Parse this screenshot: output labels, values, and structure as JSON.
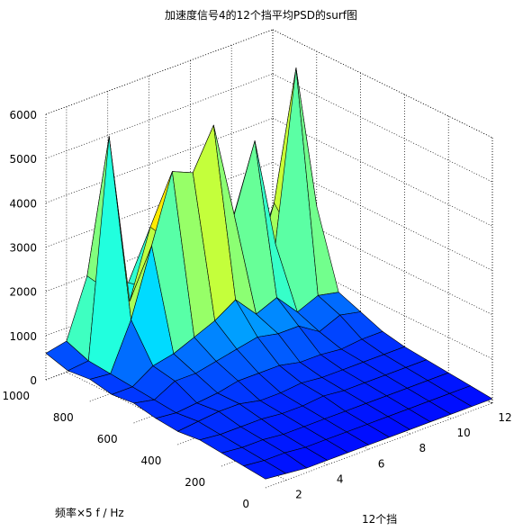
{
  "window": {
    "background": "#ffffff"
  },
  "chart_data": {
    "type": "surface",
    "title": "加速度信号4的12个挡平均PSD的surf图",
    "xlabel": "12个挡",
    "ylabel": "频率×5  f / Hz",
    "zlabel": "",
    "xlim": [
      1,
      12
    ],
    "ylim": [
      0,
      1000
    ],
    "zlim": [
      0,
      6000
    ],
    "xticks": [
      "2",
      "4",
      "6",
      "8",
      "10",
      "12"
    ],
    "yticks": [
      "0",
      "200",
      "400",
      "600",
      "800",
      "1000"
    ],
    "zticks": [
      "0",
      "1000",
      "2000",
      "3000",
      "4000",
      "5000",
      "6000"
    ],
    "grid": true,
    "colormap": "jet",
    "colors": {
      "low": "#00008b",
      "mid": "#00bfff",
      "high": "#ffff00",
      "peak": "#ff4500"
    },
    "gears": [
      1,
      2,
      3,
      4,
      5,
      6,
      7,
      8,
      9,
      10,
      11,
      12
    ],
    "frequency_samples": [
      0,
      100,
      200,
      300,
      400,
      500,
      600,
      700,
      800,
      900,
      1000
    ],
    "psd_grid": [
      [
        200,
        250,
        300,
        350,
        300,
        350,
        450,
        400,
        500,
        450,
        600
      ],
      [
        150,
        200,
        250,
        300,
        350,
        300,
        350,
        400,
        450,
        500,
        700
      ],
      [
        100,
        200,
        250,
        300,
        400,
        350,
        600,
        700,
        1500,
        5400,
        2000
      ],
      [
        100,
        150,
        200,
        300,
        400,
        400,
        600,
        800,
        3000,
        1500,
        1500
      ],
      [
        100,
        150,
        200,
        250,
        300,
        500,
        700,
        1000,
        4500,
        3000,
        1500
      ],
      [
        100,
        150,
        200,
        250,
        300,
        500,
        800,
        1200,
        4300,
        2500,
        1200
      ],
      [
        100,
        150,
        200,
        300,
        350,
        500,
        900,
        1500,
        5200,
        2000,
        1000
      ],
      [
        100,
        150,
        200,
        250,
        300,
        400,
        800,
        1000,
        3000,
        1500,
        800
      ],
      [
        100,
        150,
        200,
        250,
        300,
        400,
        800,
        1200,
        4500,
        2500,
        900
      ],
      [
        100,
        150,
        200,
        250,
        300,
        350,
        500,
        700,
        2000,
        1000,
        600
      ],
      [
        100,
        150,
        200,
        250,
        300,
        400,
        700,
        900,
        5800,
        2500,
        800
      ],
      [
        100,
        150,
        200,
        250,
        300,
        400,
        600,
        800,
        2500,
        1500,
        800
      ]
    ]
  }
}
